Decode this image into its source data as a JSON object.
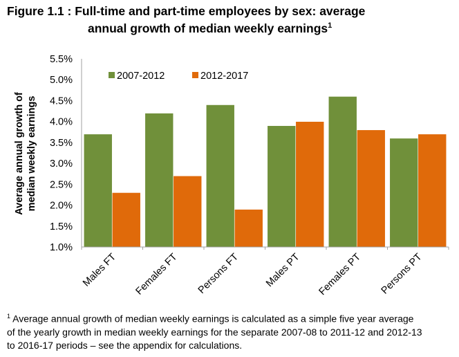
{
  "title_line1": "Figure 1.1 : Full-time and part-time employees by sex: average",
  "title_line2": "annual growth of median weekly earnings",
  "title_sup": "1",
  "footnote_sup": "1",
  "footnote_lines": [
    "Average annual growth of median weekly earnings is calculated as a simple five year average",
    "of the yearly growth in median weekly earnings for the separate 2007-08 to 2011-12 and 2012-13",
    "to 2016-17 periods – see the appendix for calculations."
  ],
  "chart_data": {
    "type": "bar",
    "title": "Figure 1.1 : Full-time and part-time employees by sex: average annual growth of median weekly earnings",
    "ylabel_lines": [
      "Average annual growth of",
      "median weekly earnings"
    ],
    "xlabel": "",
    "categories": [
      "Males FT",
      "Females FT",
      "Persons FT",
      "Males PT",
      "Females PT",
      "Persons PT"
    ],
    "series": [
      {
        "name": "2007-2012",
        "color": "#70903a",
        "values": [
          3.7,
          4.2,
          4.4,
          3.9,
          4.6,
          3.6
        ]
      },
      {
        "name": "2012-2017",
        "color": "#e06a0a",
        "values": [
          2.3,
          2.7,
          1.9,
          4.0,
          3.8,
          3.7
        ]
      }
    ],
    "ylim": [
      1.0,
      5.5
    ],
    "yticks": [
      "1.0%",
      "1.5%",
      "2.0%",
      "2.5%",
      "3.0%",
      "3.5%",
      "4.0%",
      "4.5%",
      "5.0%",
      "5.5%"
    ],
    "grid": false,
    "legend": "top-left"
  }
}
